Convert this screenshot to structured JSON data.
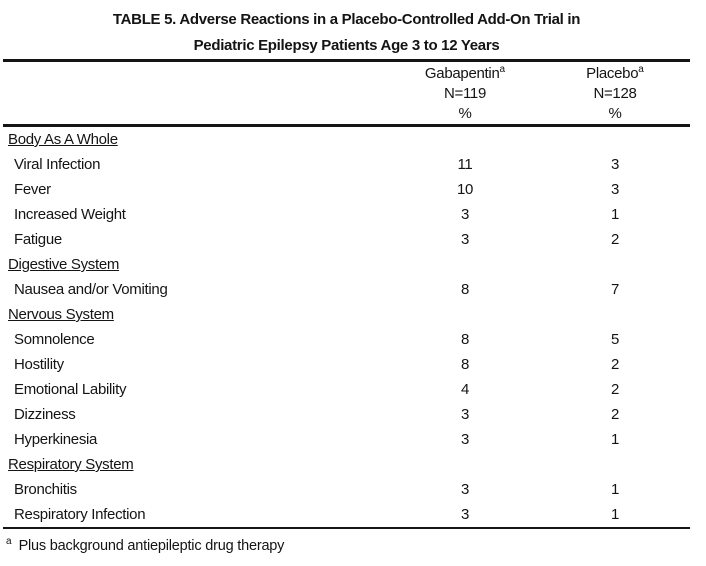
{
  "title": {
    "line1": "TABLE 5. Adverse Reactions in a Placebo-Controlled Add-On Trial in",
    "line2": "Pediatric Epilepsy Patients Age 3 to 12 Years"
  },
  "columns": [
    {
      "name": "Gabapentin",
      "marker": "a",
      "n": "N=119",
      "unit": "%"
    },
    {
      "name": "Placebo",
      "marker": "a",
      "n": "N=128",
      "unit": "%"
    }
  ],
  "sections": [
    {
      "name": "Body As A Whole",
      "rows": [
        {
          "label": "Viral Infection",
          "gabapentin": "11",
          "placebo": "3"
        },
        {
          "label": "Fever",
          "gabapentin": "10",
          "placebo": "3"
        },
        {
          "label": "Increased Weight",
          "gabapentin": "3",
          "placebo": "1"
        },
        {
          "label": "Fatigue",
          "gabapentin": "3",
          "placebo": "2"
        }
      ]
    },
    {
      "name": "Digestive System",
      "rows": [
        {
          "label": "Nausea and/or Vomiting",
          "gabapentin": "8",
          "placebo": "7"
        }
      ]
    },
    {
      "name": "Nervous System",
      "rows": [
        {
          "label": "Somnolence",
          "gabapentin": "8",
          "placebo": "5"
        },
        {
          "label": "Hostility",
          "gabapentin": "8",
          "placebo": "2"
        },
        {
          "label": "Emotional Lability",
          "gabapentin": "4",
          "placebo": "2"
        },
        {
          "label": "Dizziness",
          "gabapentin": "3",
          "placebo": "2"
        },
        {
          "label": "Hyperkinesia",
          "gabapentin": "3",
          "placebo": "1"
        }
      ]
    },
    {
      "name": "Respiratory System",
      "rows": [
        {
          "label": "Bronchitis",
          "gabapentin": "3",
          "placebo": "1"
        },
        {
          "label": "Respiratory Infection",
          "gabapentin": "3",
          "placebo": "1"
        }
      ]
    }
  ],
  "footnote": {
    "marker": "a",
    "text": "Plus background antiepileptic drug therapy"
  },
  "colors": {
    "text": "#141414",
    "background": "#ffffff"
  }
}
